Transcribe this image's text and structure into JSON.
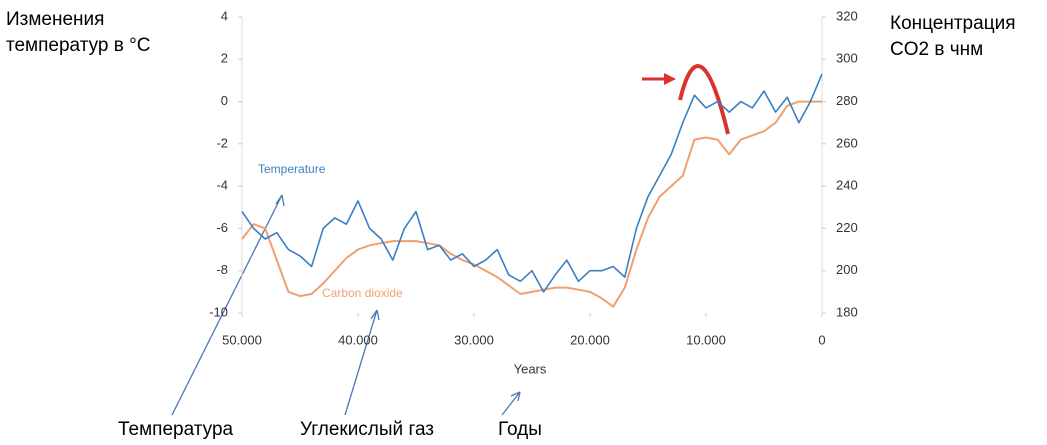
{
  "chart_data": {
    "type": "line",
    "y_label": [
      "Изменения",
      "температур в °C"
    ],
    "y2_label": [
      "Концентрация",
      "CO2 в чнм"
    ],
    "x_label": "Years",
    "annotations": [
      "Temperature",
      "Carbon dioxide",
      "Температура",
      "Углекислый газ",
      "Годы"
    ],
    "x": [
      50000,
      49000,
      48000,
      47000,
      46000,
      45000,
      44000,
      43000,
      42000,
      41000,
      40000,
      39000,
      38000,
      37000,
      36000,
      35000,
      34000,
      33000,
      32000,
      31000,
      30000,
      29000,
      28000,
      27000,
      26000,
      25000,
      24000,
      23000,
      22000,
      21000,
      20000,
      19000,
      18000,
      17000,
      16000,
      15000,
      14000,
      13000,
      12000,
      11000,
      10000,
      9000,
      8000,
      7000,
      6000,
      5000,
      4000,
      3000,
      2000,
      1000,
      0
    ],
    "series": [
      {
        "name": "Temperature",
        "color": "#3b7fc4",
        "axis": "y",
        "values": [
          -5.2,
          -6,
          -6.5,
          -6.2,
          -7,
          -7.3,
          -7.8,
          -6,
          -5.5,
          -5.8,
          -4.7,
          -6,
          -6.5,
          -7.5,
          -6,
          -5.2,
          -7,
          -6.8,
          -7.5,
          -7.2,
          -7.8,
          -7.5,
          -7,
          -8.2,
          -8.5,
          -8,
          -9,
          -8.2,
          -7.5,
          -8.5,
          -8,
          -8,
          -7.8,
          -8.3,
          -6,
          -4.5,
          -3.5,
          -2.5,
          -1,
          0.3,
          -0.3,
          0,
          -0.5,
          0,
          -0.3,
          0.5,
          -0.5,
          0.2,
          -1,
          0,
          1.3
        ]
      },
      {
        "name": "Carbon dioxide",
        "color": "#f0a070",
        "axis": "y2",
        "values": [
          215,
          222,
          220,
          205,
          190,
          188,
          189,
          194,
          200,
          206,
          210,
          212,
          213,
          214,
          214,
          214,
          213,
          212,
          208,
          205,
          203,
          200,
          197,
          193,
          189,
          190,
          191,
          192,
          192,
          191,
          190,
          187,
          183,
          192,
          210,
          225,
          235,
          240,
          245,
          262,
          263,
          262,
          255,
          262,
          264,
          266,
          270,
          278,
          280,
          280,
          280
        ]
      }
    ],
    "xlim": [
      50000,
      0
    ],
    "xticks": [
      {
        "value": 50000,
        "label": "50.000"
      },
      {
        "value": 40000,
        "label": "40.000"
      },
      {
        "value": 30000,
        "label": "30.000"
      },
      {
        "value": 20000,
        "label": "20.000"
      },
      {
        "value": 10000,
        "label": "10.000"
      },
      0
    ],
    "ylim": [
      -10,
      4
    ],
    "yticks": [
      -10,
      -8,
      -6,
      -4,
      -2,
      0,
      2,
      4
    ],
    "y2lim": [
      180,
      320
    ],
    "y2ticks": [
      180,
      200,
      220,
      240,
      260,
      280,
      300,
      320
    ],
    "grid": false
  }
}
